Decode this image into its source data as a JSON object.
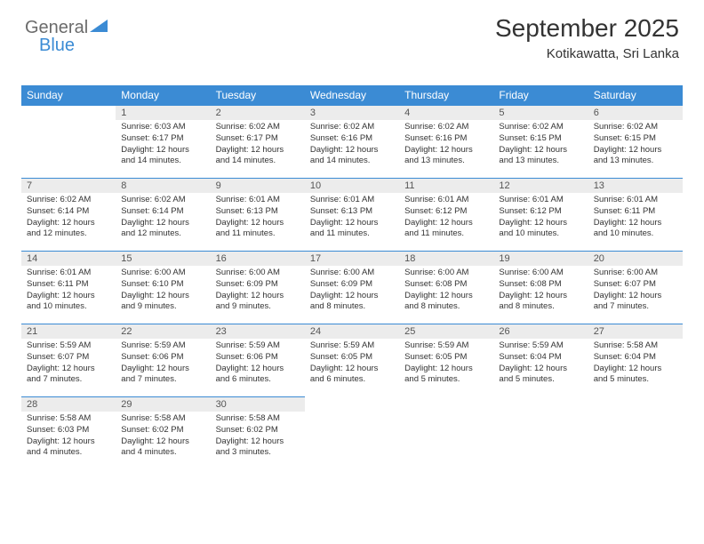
{
  "logo": {
    "word1": "General",
    "word2": "Blue",
    "icon_color": "#3b8bd4"
  },
  "header": {
    "title": "September 2025",
    "location": "Kotikawatta, Sri Lanka"
  },
  "colors": {
    "header_bg": "#3b8bd4",
    "header_text": "#ffffff",
    "daynum_bg": "#ececec",
    "daynum_text": "#555555",
    "cell_border": "#3b8bd4",
    "body_text": "#333333"
  },
  "daysOfWeek": [
    "Sunday",
    "Monday",
    "Tuesday",
    "Wednesday",
    "Thursday",
    "Friday",
    "Saturday"
  ],
  "grid": [
    [
      null,
      {
        "n": "1",
        "sr": "6:03 AM",
        "ss": "6:17 PM",
        "dl": "12 hours and 14 minutes."
      },
      {
        "n": "2",
        "sr": "6:02 AM",
        "ss": "6:17 PM",
        "dl": "12 hours and 14 minutes."
      },
      {
        "n": "3",
        "sr": "6:02 AM",
        "ss": "6:16 PM",
        "dl": "12 hours and 14 minutes."
      },
      {
        "n": "4",
        "sr": "6:02 AM",
        "ss": "6:16 PM",
        "dl": "12 hours and 13 minutes."
      },
      {
        "n": "5",
        "sr": "6:02 AM",
        "ss": "6:15 PM",
        "dl": "12 hours and 13 minutes."
      },
      {
        "n": "6",
        "sr": "6:02 AM",
        "ss": "6:15 PM",
        "dl": "12 hours and 13 minutes."
      }
    ],
    [
      {
        "n": "7",
        "sr": "6:02 AM",
        "ss": "6:14 PM",
        "dl": "12 hours and 12 minutes."
      },
      {
        "n": "8",
        "sr": "6:02 AM",
        "ss": "6:14 PM",
        "dl": "12 hours and 12 minutes."
      },
      {
        "n": "9",
        "sr": "6:01 AM",
        "ss": "6:13 PM",
        "dl": "12 hours and 11 minutes."
      },
      {
        "n": "10",
        "sr": "6:01 AM",
        "ss": "6:13 PM",
        "dl": "12 hours and 11 minutes."
      },
      {
        "n": "11",
        "sr": "6:01 AM",
        "ss": "6:12 PM",
        "dl": "12 hours and 11 minutes."
      },
      {
        "n": "12",
        "sr": "6:01 AM",
        "ss": "6:12 PM",
        "dl": "12 hours and 10 minutes."
      },
      {
        "n": "13",
        "sr": "6:01 AM",
        "ss": "6:11 PM",
        "dl": "12 hours and 10 minutes."
      }
    ],
    [
      {
        "n": "14",
        "sr": "6:01 AM",
        "ss": "6:11 PM",
        "dl": "12 hours and 10 minutes."
      },
      {
        "n": "15",
        "sr": "6:00 AM",
        "ss": "6:10 PM",
        "dl": "12 hours and 9 minutes."
      },
      {
        "n": "16",
        "sr": "6:00 AM",
        "ss": "6:09 PM",
        "dl": "12 hours and 9 minutes."
      },
      {
        "n": "17",
        "sr": "6:00 AM",
        "ss": "6:09 PM",
        "dl": "12 hours and 8 minutes."
      },
      {
        "n": "18",
        "sr": "6:00 AM",
        "ss": "6:08 PM",
        "dl": "12 hours and 8 minutes."
      },
      {
        "n": "19",
        "sr": "6:00 AM",
        "ss": "6:08 PM",
        "dl": "12 hours and 8 minutes."
      },
      {
        "n": "20",
        "sr": "6:00 AM",
        "ss": "6:07 PM",
        "dl": "12 hours and 7 minutes."
      }
    ],
    [
      {
        "n": "21",
        "sr": "5:59 AM",
        "ss": "6:07 PM",
        "dl": "12 hours and 7 minutes."
      },
      {
        "n": "22",
        "sr": "5:59 AM",
        "ss": "6:06 PM",
        "dl": "12 hours and 7 minutes."
      },
      {
        "n": "23",
        "sr": "5:59 AM",
        "ss": "6:06 PM",
        "dl": "12 hours and 6 minutes."
      },
      {
        "n": "24",
        "sr": "5:59 AM",
        "ss": "6:05 PM",
        "dl": "12 hours and 6 minutes."
      },
      {
        "n": "25",
        "sr": "5:59 AM",
        "ss": "6:05 PM",
        "dl": "12 hours and 5 minutes."
      },
      {
        "n": "26",
        "sr": "5:59 AM",
        "ss": "6:04 PM",
        "dl": "12 hours and 5 minutes."
      },
      {
        "n": "27",
        "sr": "5:58 AM",
        "ss": "6:04 PM",
        "dl": "12 hours and 5 minutes."
      }
    ],
    [
      {
        "n": "28",
        "sr": "5:58 AM",
        "ss": "6:03 PM",
        "dl": "12 hours and 4 minutes."
      },
      {
        "n": "29",
        "sr": "5:58 AM",
        "ss": "6:02 PM",
        "dl": "12 hours and 4 minutes."
      },
      {
        "n": "30",
        "sr": "5:58 AM",
        "ss": "6:02 PM",
        "dl": "12 hours and 3 minutes."
      },
      null,
      null,
      null,
      null
    ]
  ],
  "labels": {
    "sunrise": "Sunrise:",
    "sunset": "Sunset:",
    "daylight": "Daylight:"
  }
}
